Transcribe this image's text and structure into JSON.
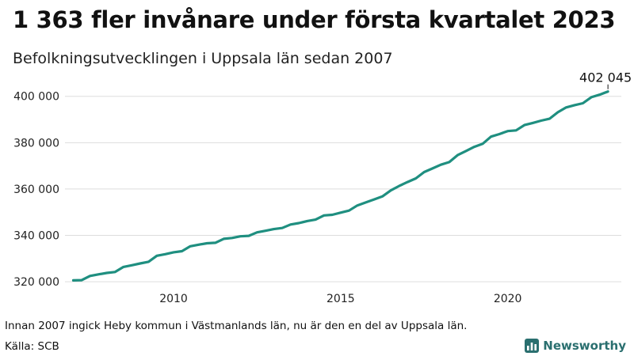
{
  "title": "1 363 fler invånare under första kvartalet 2023",
  "subtitle": "Befolkningsutvecklingen i Uppsala län sedan 2007",
  "note": "Innan 2007 ingick Heby kommun i Västmanlands län, nu är den en del av Uppsala län.",
  "source": "Källa: SCB",
  "brand": {
    "name": "Newsworthy",
    "logo_icon": "bar-chart-icon",
    "color": "#2a6f6f"
  },
  "chart_data": {
    "type": "line",
    "title": "",
    "xlabel": "",
    "ylabel": "",
    "ylim": [
      318000,
      404000
    ],
    "xlim": [
      2006.75,
      2023.4
    ],
    "yticks": [
      320000,
      340000,
      360000,
      380000,
      400000
    ],
    "ytick_labels": [
      "320 000",
      "340 000",
      "360 000",
      "380 000",
      "400 000"
    ],
    "xticks": [
      2010,
      2015,
      2020
    ],
    "xtick_labels": [
      "2010",
      "2015",
      "2020"
    ],
    "grid": true,
    "line_color": "#1f8f80",
    "last_label": "402 045",
    "series": [
      {
        "name": "",
        "x": [
          2007.0,
          2007.25,
          2007.5,
          2007.75,
          2008.0,
          2008.25,
          2008.5,
          2008.75,
          2009.0,
          2009.25,
          2009.5,
          2009.75,
          2010.0,
          2010.25,
          2010.5,
          2010.75,
          2011.0,
          2011.25,
          2011.5,
          2011.75,
          2012.0,
          2012.25,
          2012.5,
          2012.75,
          2013.0,
          2013.25,
          2013.5,
          2013.75,
          2014.0,
          2014.25,
          2014.5,
          2014.75,
          2015.0,
          2015.25,
          2015.5,
          2015.75,
          2016.0,
          2016.25,
          2016.5,
          2016.75,
          2017.0,
          2017.25,
          2017.5,
          2017.75,
          2018.0,
          2018.25,
          2018.5,
          2018.75,
          2019.0,
          2019.25,
          2019.5,
          2019.75,
          2020.0,
          2020.25,
          2020.5,
          2020.75,
          2021.0,
          2021.25,
          2021.5,
          2021.75,
          2022.0,
          2022.25,
          2022.5,
          2022.75,
          2023.0
        ],
        "y": [
          320600,
          320700,
          322500,
          323200,
          323800,
          324200,
          326400,
          327100,
          327900,
          328600,
          331200,
          331900,
          332700,
          333200,
          335300,
          336000,
          336600,
          336800,
          338500,
          338900,
          339600,
          339800,
          341300,
          342000,
          342700,
          343200,
          344700,
          345300,
          346200,
          346800,
          348600,
          348900,
          349800,
          350700,
          352900,
          354200,
          355500,
          356800,
          359400,
          361300,
          363000,
          364600,
          367300,
          368900,
          370500,
          371600,
          374600,
          376400,
          378200,
          379500,
          382600,
          383700,
          385000,
          385300,
          387600,
          388500,
          389500,
          390300,
          393100,
          395200,
          396200,
          397000,
          399600,
          400700,
          402045
        ]
      }
    ]
  }
}
